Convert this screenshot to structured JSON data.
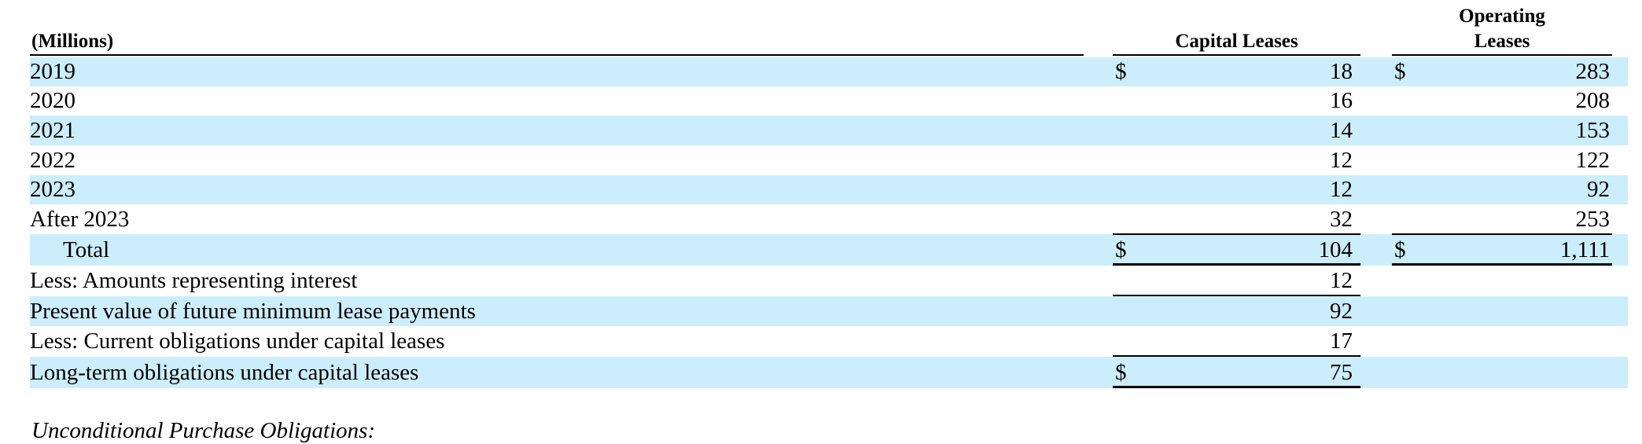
{
  "table": {
    "headers": {
      "label_col": "(Millions)",
      "capital": "Capital Leases",
      "operating_line1": "Operating",
      "operating_line2": "Leases"
    },
    "rows": [
      {
        "label": "2019",
        "cap_dollar": "$",
        "capital": "18",
        "op_dollar": "$",
        "operating": "283"
      },
      {
        "label": "2020",
        "cap_dollar": "",
        "capital": "16",
        "op_dollar": "",
        "operating": "208"
      },
      {
        "label": "2021",
        "cap_dollar": "",
        "capital": "14",
        "op_dollar": "",
        "operating": "153"
      },
      {
        "label": "2022",
        "cap_dollar": "",
        "capital": "12",
        "op_dollar": "",
        "operating": "122"
      },
      {
        "label": "2023",
        "cap_dollar": "",
        "capital": "12",
        "op_dollar": "",
        "operating": "92"
      },
      {
        "label": "After 2023",
        "cap_dollar": "",
        "capital": "32",
        "op_dollar": "",
        "operating": "253"
      },
      {
        "label": "Total",
        "cap_dollar": "$",
        "capital": "104",
        "op_dollar": "$",
        "operating": "1,111"
      },
      {
        "label": "Less: Amounts representing interest",
        "cap_dollar": "",
        "capital": "12",
        "op_dollar": "",
        "operating": ""
      },
      {
        "label": "Present value of future minimum lease payments",
        "cap_dollar": "",
        "capital": "92",
        "op_dollar": "",
        "operating": ""
      },
      {
        "label": "Less: Current obligations under capital leases",
        "cap_dollar": "",
        "capital": "17",
        "op_dollar": "",
        "operating": ""
      },
      {
        "label": "Long-term obligations under capital leases",
        "cap_dollar": "$",
        "capital": "75",
        "op_dollar": "",
        "operating": ""
      }
    ]
  },
  "footnote": "Unconditional Purchase Obligations:",
  "colors": {
    "row_shade": "#cceefc",
    "rule": "#000000"
  }
}
